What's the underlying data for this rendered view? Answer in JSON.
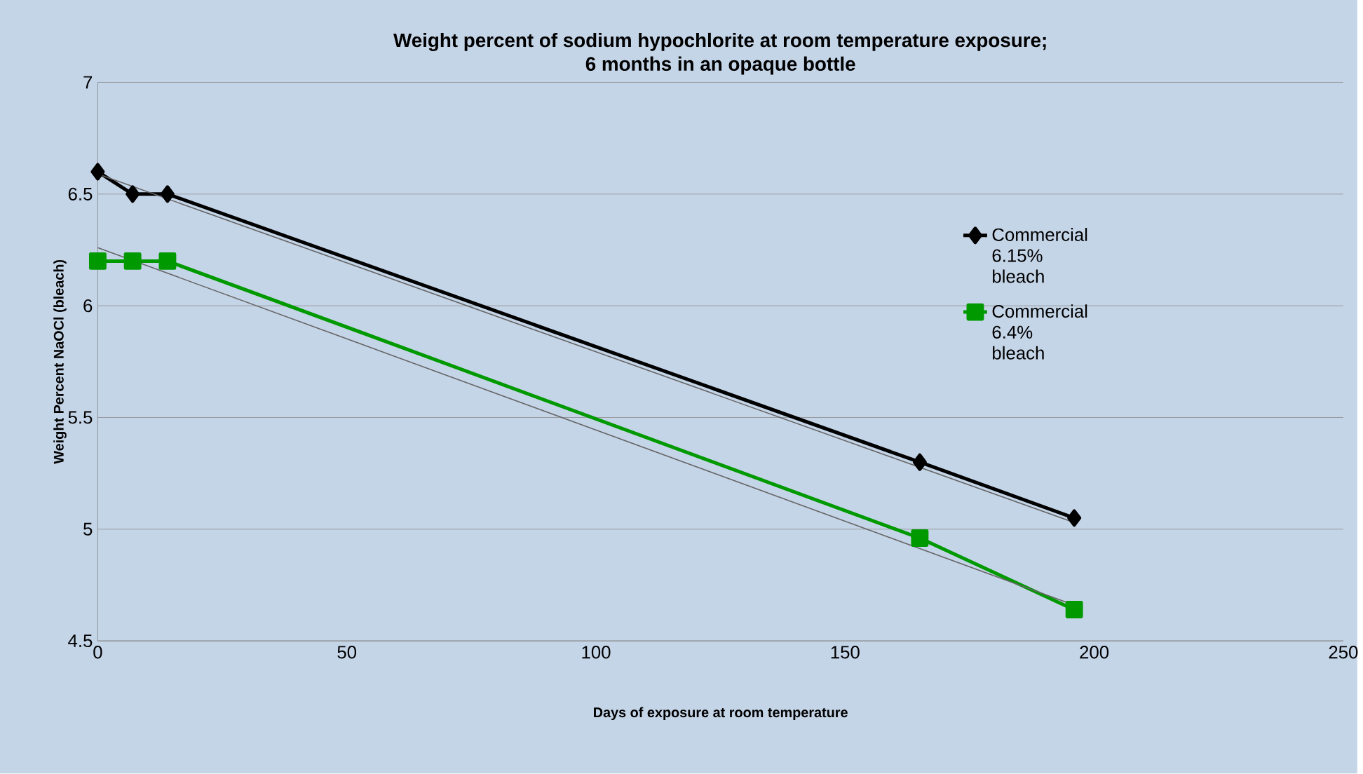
{
  "chart_data": {
    "type": "line",
    "title": "Weight percent of sodium hypochlorite at room temperature exposure;\n6 months in an opaque bottle",
    "xlabel": "Days of exposure at room temperature",
    "ylabel": "Weight Percent NaOCl (bleach)",
    "x": [
      0,
      7,
      14,
      165,
      196
    ],
    "series": [
      {
        "name": "Commercial 6.15% bleach",
        "color": "#000000",
        "marker": "diamond",
        "values": [
          6.6,
          6.5,
          6.5,
          5.3,
          5.05
        ]
      },
      {
        "name": "Commercial 6.4% bleach",
        "color": "#009900",
        "marker": "square",
        "values": [
          6.2,
          6.2,
          6.2,
          4.96,
          4.64
        ]
      },
      {
        "color": "#666666",
        "marker": "none",
        "values": [
          6.59,
          null,
          null,
          null,
          5.03
        ]
      },
      {
        "color": "#666666",
        "marker": "none",
        "values": [
          6.26,
          null,
          null,
          null,
          4.66
        ]
      }
    ],
    "xlim": [
      0,
      250
    ],
    "xticks": [
      0,
      50,
      100,
      150,
      200,
      250
    ],
    "ylim": [
      4.5,
      7
    ],
    "yticks": [
      4.5,
      5,
      5.5,
      6,
      6.5,
      7
    ],
    "grid": "y",
    "legend": "right"
  }
}
